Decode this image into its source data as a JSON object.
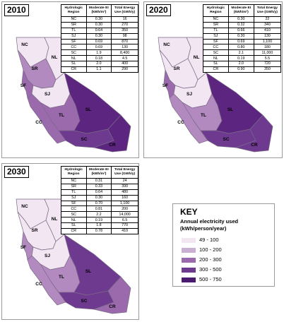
{
  "maps": [
    {
      "year": "2010",
      "headers": [
        "Hydrologic Region",
        "Moderate EI (kWh/m³)",
        "Total Energy Use (GWh/y)"
      ],
      "rows": [
        [
          "NC",
          "0.30",
          "16"
        ],
        [
          "SR",
          "0.30",
          "270"
        ],
        [
          "TL",
          "0.64",
          "350"
        ],
        [
          "SJ",
          "0.30",
          "98"
        ],
        [
          "SF",
          "0.69",
          "870"
        ],
        [
          "CC",
          "0.69",
          "130"
        ],
        [
          "SC",
          "1.9",
          "8,400"
        ],
        [
          "NL",
          "0.18",
          "4.5"
        ],
        [
          "SL",
          "2.0",
          "400"
        ],
        [
          "CR",
          "1.1",
          "290"
        ]
      ],
      "shades": {
        "NC": "#f2e6f3",
        "NL": "#f2e6f3",
        "SR": "#b28ac0",
        "SF": "#9b6aad",
        "SJ": "#f2e6f3",
        "TL": "#9b6aad",
        "CC": "#9b6aad",
        "SL": "#5b2580",
        "SC": "#6e3a8f",
        "CR": "#5b2580"
      }
    },
    {
      "year": "2020",
      "headers": [
        "Hydrologic Region",
        "Moderate EI (kWh/m³)",
        "Total Energy Use (GWh/y)"
      ],
      "rows": [
        [
          "NC",
          "0.30",
          "22"
        ],
        [
          "SR",
          "0.32",
          "340"
        ],
        [
          "TL",
          "0.66",
          "410"
        ],
        [
          "SJ",
          "0.30",
          "130"
        ],
        [
          "SF",
          "0.69",
          "1,100"
        ],
        [
          "CC",
          "0.80",
          "180"
        ],
        [
          "SC",
          "2.1",
          "11,000"
        ],
        [
          "NL",
          "0.19",
          "5.5"
        ],
        [
          "SL",
          "2.0",
          "720"
        ],
        [
          "CR",
          "0.90",
          "350"
        ]
      ],
      "shades": {
        "NC": "#f2e6f3",
        "NL": "#f2e6f3",
        "SR": "#f2e6f3",
        "SF": "#9b6aad",
        "SJ": "#f2e6f3",
        "TL": "#b28ac0",
        "CC": "#b28ac0",
        "SL": "#5b2580",
        "SC": "#6e3a8f",
        "CR": "#6e3a8f"
      }
    },
    {
      "year": "2030",
      "headers": [
        "Hydrologic Region",
        "Moderate EI (kWh/m³)",
        "Total Energy Use (GWh/y)"
      ],
      "rows": [
        [
          "NC",
          "0.31",
          "24"
        ],
        [
          "SR",
          "0.33",
          "390"
        ],
        [
          "TL",
          "0.64",
          "480"
        ],
        [
          "SJ",
          "0.30",
          "160"
        ],
        [
          "SF",
          "0.70",
          "1,100"
        ],
        [
          "CC",
          "0.81",
          "200"
        ],
        [
          "SC",
          "2.2",
          "14,000"
        ],
        [
          "NL",
          "0.19",
          "6.5"
        ],
        [
          "SL",
          "1.8",
          "770"
        ],
        [
          "CR",
          "0.78",
          "410"
        ]
      ],
      "shades": {
        "NC": "#f2e6f3",
        "NL": "#f2e6f3",
        "SR": "#f2e6f3",
        "SF": "#b28ac0",
        "SJ": "#f2e6f3",
        "TL": "#b28ac0",
        "CC": "#b28ac0",
        "SL": "#6e3a8f",
        "SC": "#6e3a8f",
        "CR": "#9b6aad"
      }
    }
  ],
  "key": {
    "title": "KEY",
    "subtitle": "Annual electricity used (kWh/person/year)",
    "items": [
      {
        "label": "49 - 100",
        "color": "#f2e6f3"
      },
      {
        "label": "100 - 200",
        "color": "#c9b0d3"
      },
      {
        "label": "200 - 300",
        "color": "#9b6aad"
      },
      {
        "label": "300 - 500",
        "color": "#6e3a8f"
      },
      {
        "label": "500 - 750",
        "color": "#4a1a6e"
      }
    ]
  }
}
